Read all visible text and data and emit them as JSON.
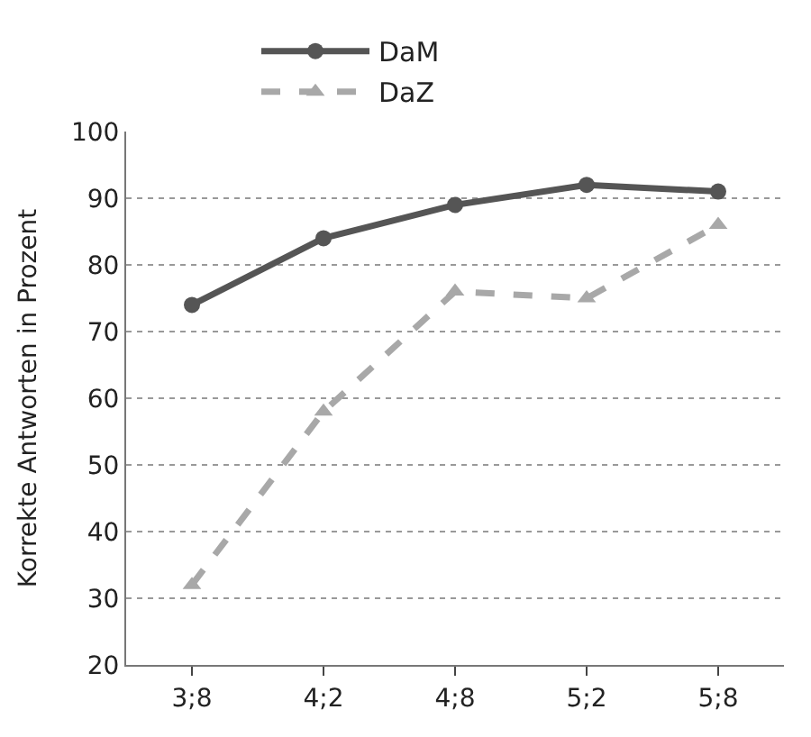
{
  "chart_data": {
    "type": "line",
    "ylabel": "Korrekte Antworten in Prozent",
    "categories": [
      "3;8",
      "4;2",
      "4;8",
      "5;2",
      "5;8"
    ],
    "series": [
      {
        "name": "DaM",
        "color": "#555555",
        "values": [
          74,
          84,
          89,
          92,
          91
        ],
        "line_style": "solid",
        "marker": "circle"
      },
      {
        "name": "DaZ",
        "color": "#a8a8a8",
        "values": [
          32,
          58,
          76,
          75,
          86
        ],
        "line_style": "dashed",
        "marker": "triangle"
      }
    ],
    "ylim": [
      20,
      100
    ],
    "yticks": [
      20,
      30,
      40,
      50,
      60,
      70,
      80,
      90,
      100
    ],
    "grid": "y",
    "legend": "top"
  }
}
